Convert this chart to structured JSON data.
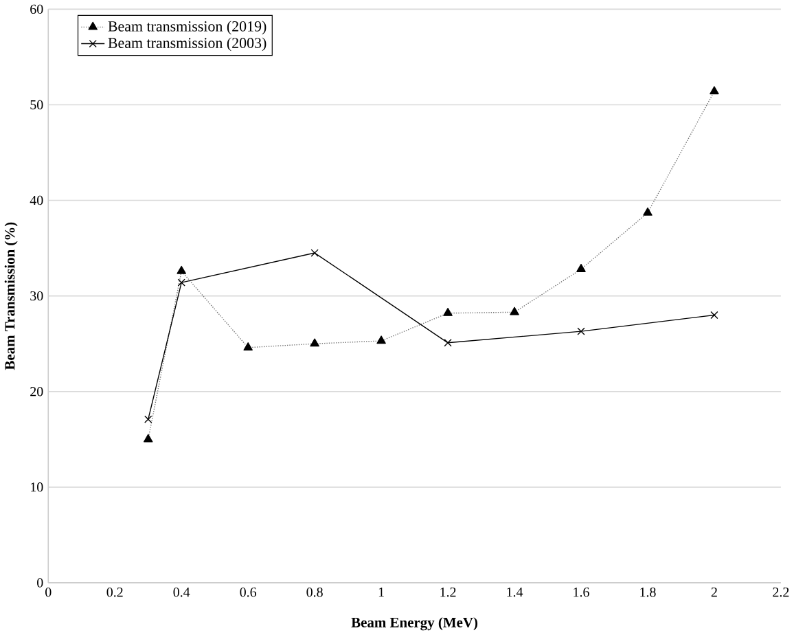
{
  "chart_data": {
    "type": "line",
    "xlabel": "Beam Energy (MeV)",
    "ylabel": "Beam Transmission (%)",
    "xlim": [
      0,
      2.2
    ],
    "xticks": [
      0,
      0.2,
      0.4,
      0.6,
      0.8,
      1,
      1.2,
      1.4,
      1.6,
      1.8,
      2,
      2.2
    ],
    "ylim": [
      0,
      60
    ],
    "yticks": [
      0,
      10,
      20,
      30,
      40,
      50,
      60
    ],
    "grid": "y",
    "legend": "top left",
    "series": [
      {
        "name": "Beam transmission  (2019)",
        "color": "#000000",
        "marker": "triangle",
        "line_style": "dotted",
        "x": [
          0.3,
          0.4,
          0.6,
          0.8,
          1,
          1.2,
          1.4,
          1.6,
          1.8,
          2
        ],
        "values": [
          15,
          32.6,
          24.6,
          25,
          25.3,
          28.2,
          28.3,
          32.8,
          38.7,
          51.4
        ]
      },
      {
        "name": "Beam transmission  (2003)",
        "color": "#000000",
        "marker": "cross",
        "line_style": "solid",
        "x": [
          0.3,
          0.4,
          0.8,
          1.2,
          1.6,
          2
        ],
        "values": [
          17.1,
          31.4,
          34.5,
          25.1,
          26.3,
          28
        ]
      }
    ]
  }
}
